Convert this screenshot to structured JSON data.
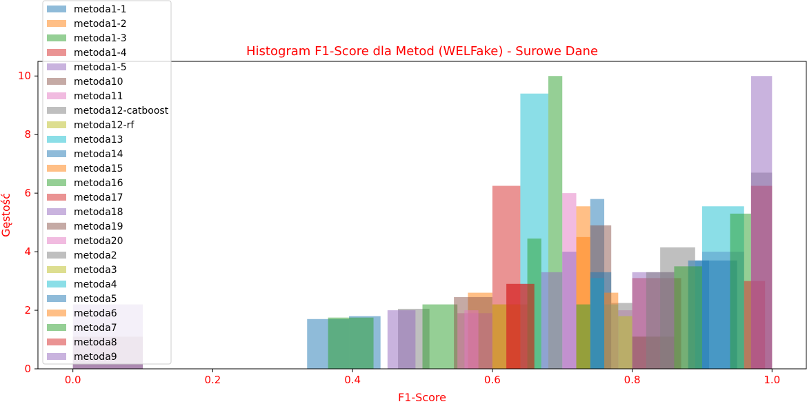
{
  "chart_data": {
    "type": "histogram",
    "title": "Histogram F1-Score dla Metod (WELFake) - Surowe Dane",
    "xlabel": "F1-Score",
    "ylabel": "Gęstość",
    "xlim": [
      -0.05,
      1.05
    ],
    "ylim": [
      0,
      10.5
    ],
    "xticks": [
      "0.0",
      "0.2",
      "0.4",
      "0.6",
      "0.8",
      "1.0"
    ],
    "yticks": [
      "0",
      "2",
      "4",
      "6",
      "8",
      "10"
    ],
    "legend_position": "upper-left",
    "colors": [
      "#1f77b4",
      "#ff7f0e",
      "#2ca02c",
      "#d62728",
      "#9467bd",
      "#8c564b",
      "#e377c2",
      "#7f7f7f",
      "#bcbd22",
      "#17becf"
    ],
    "series": [
      {
        "name": "metoda1-1",
        "bins": [
          [
            0.335,
            0.395,
            1.7
          ],
          [
            0.395,
            0.44,
            1.8
          ]
        ]
      },
      {
        "name": "metoda1-2",
        "bins": [
          [
            0.565,
            0.6,
            2.6
          ],
          [
            0.6,
            0.64,
            2.2
          ]
        ]
      },
      {
        "name": "metoda1-3",
        "bins": [
          [
            0.365,
            0.43,
            1.75
          ]
        ]
      },
      {
        "name": "metoda1-4",
        "bins": [
          [
            0.6,
            0.64,
            6.25
          ],
          [
            0.8,
            0.87,
            3.1
          ]
        ]
      },
      {
        "name": "metoda1-5",
        "bins": [
          [
            0.8,
            0.86,
            3.3
          ],
          [
            0.9,
            0.96,
            4.0
          ]
        ]
      },
      {
        "name": "metoda10",
        "bins": [
          [
            0.0,
            0.1,
            1.1
          ],
          [
            0.8,
            0.86,
            1.1
          ]
        ]
      },
      {
        "name": "metoda11",
        "bins": [
          [
            0.55,
            0.6,
            1.9
          ],
          [
            0.7,
            0.72,
            6.0
          ]
        ]
      },
      {
        "name": "metoda12-catboost",
        "bins": [
          [
            0.465,
            0.51,
            2.05
          ],
          [
            0.84,
            0.89,
            4.15
          ],
          [
            0.97,
            1.0,
            6.7
          ]
        ]
      },
      {
        "name": "metoda12-rf",
        "bins": [
          [
            0.6,
            0.65,
            2.2
          ]
        ]
      },
      {
        "name": "metoda13",
        "bins": [
          [
            0.64,
            0.68,
            9.4
          ],
          [
            0.9,
            0.96,
            5.55
          ]
        ]
      },
      {
        "name": "metoda14",
        "bins": [
          [
            0.74,
            0.76,
            5.8
          ],
          [
            0.89,
            0.95,
            3.7
          ]
        ]
      },
      {
        "name": "metoda15",
        "bins": [
          [
            0.72,
            0.74,
            5.55
          ]
        ]
      },
      {
        "name": "metoda16",
        "bins": [
          [
            0.5,
            0.55,
            2.2
          ],
          [
            0.68,
            0.7,
            10.0
          ],
          [
            0.94,
            0.97,
            5.3
          ]
        ]
      },
      {
        "name": "metoda17",
        "bins": [
          [
            0.62,
            0.66,
            2.9
          ],
          [
            0.97,
            1.0,
            6.25
          ]
        ]
      },
      {
        "name": "metoda18",
        "bins": [
          [
            0.45,
            0.49,
            2.0
          ],
          [
            0.7,
            0.72,
            4.0
          ]
        ]
      },
      {
        "name": "metoda19",
        "bins": [
          [
            0.545,
            0.6,
            2.45
          ],
          [
            0.74,
            0.77,
            4.9
          ]
        ]
      },
      {
        "name": "metoda20",
        "bins": [
          [
            0.56,
            0.58,
            2.0
          ],
          [
            0.78,
            0.8,
            2.0
          ]
        ]
      },
      {
        "name": "metoda2",
        "bins": [
          [
            0.77,
            0.8,
            2.25
          ],
          [
            0.82,
            0.86,
            3.3
          ]
        ]
      },
      {
        "name": "metoda3",
        "bins": [
          [
            0.78,
            0.8,
            1.8
          ]
        ]
      },
      {
        "name": "metoda4",
        "bins": [
          [
            0.74,
            0.76,
            3.1
          ],
          [
            0.76,
            0.78,
            2.2
          ]
        ]
      },
      {
        "name": "metoda5",
        "bins": [
          [
            0.74,
            0.77,
            3.3
          ],
          [
            0.88,
            0.91,
            3.7
          ]
        ]
      },
      {
        "name": "metoda6",
        "bins": [
          [
            0.72,
            0.74,
            4.5
          ],
          [
            0.76,
            0.78,
            2.6
          ]
        ]
      },
      {
        "name": "metoda7",
        "bins": [
          [
            0.65,
            0.67,
            4.45
          ],
          [
            0.72,
            0.74,
            2.2
          ],
          [
            0.86,
            0.9,
            3.5
          ]
        ]
      },
      {
        "name": "metoda8",
        "bins": [
          [
            0.62,
            0.66,
            2.9
          ],
          [
            0.96,
            0.99,
            3.0
          ]
        ]
      },
      {
        "name": "metoda9",
        "bins": [
          [
            0.0,
            0.1,
            2.2
          ],
          [
            0.67,
            0.7,
            3.3
          ],
          [
            0.97,
            1.0,
            10.0
          ]
        ]
      }
    ]
  }
}
